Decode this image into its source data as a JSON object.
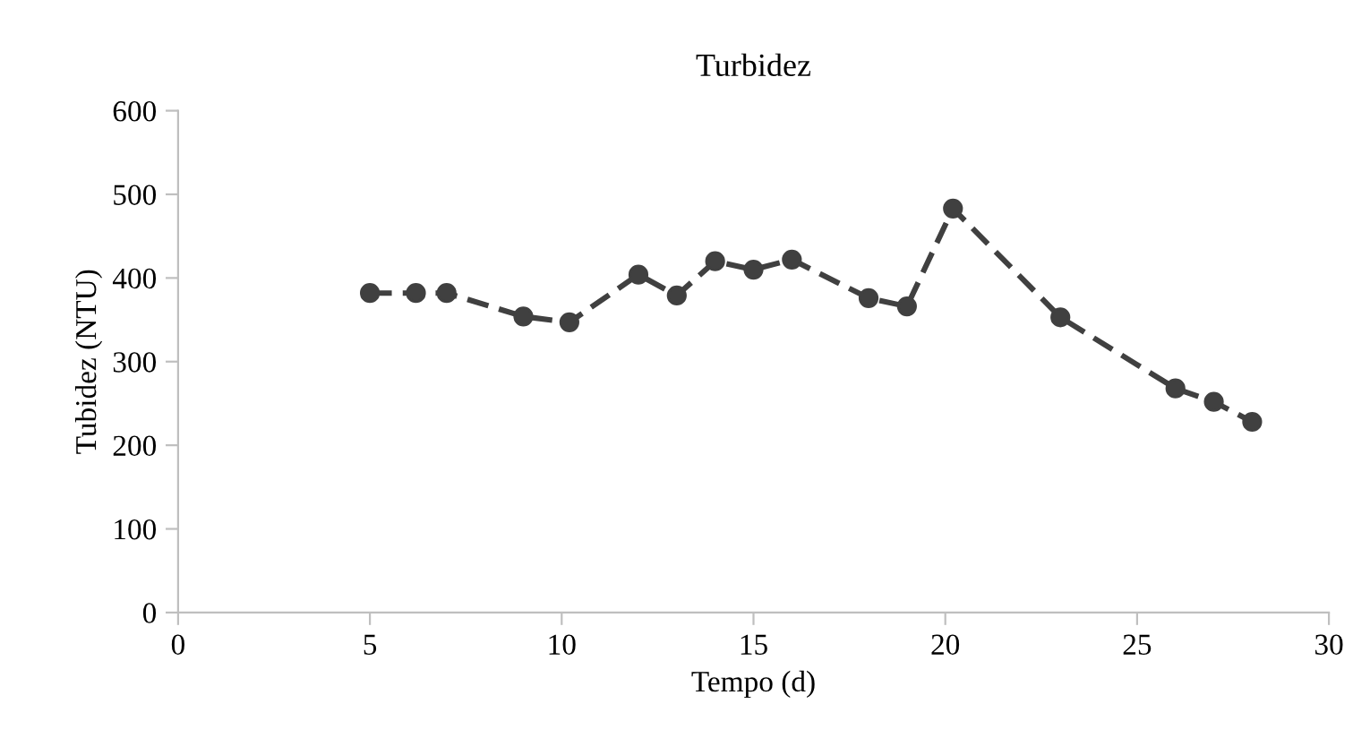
{
  "chart_data": {
    "type": "line",
    "title": "Turbidez",
    "xlabel": "Tempo (d)",
    "ylabel": "Tubidez (NTU)",
    "x": [
      5,
      6.2,
      7,
      9,
      10.2,
      12,
      13,
      14,
      15,
      16,
      18,
      19,
      20.2,
      23,
      26,
      27,
      28
    ],
    "series": [
      {
        "color": "#404040",
        "values": [
          382,
          382,
          382,
          354,
          347,
          404,
          379,
          420,
          410,
          422,
          376,
          366,
          483,
          353,
          268,
          252,
          228
        ]
      }
    ],
    "xlim": [
      0,
      30
    ],
    "xticks": [
      0,
      5,
      10,
      15,
      20,
      25,
      30
    ],
    "ylim": [
      0,
      600
    ],
    "yticks": [
      0,
      100,
      200,
      300,
      400,
      500,
      600
    ],
    "grid": false,
    "legend": false,
    "marker": "circle",
    "line_style": "dashed"
  }
}
